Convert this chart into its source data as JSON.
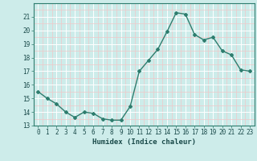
{
  "x": [
    0,
    1,
    2,
    3,
    4,
    5,
    6,
    7,
    8,
    9,
    10,
    11,
    12,
    13,
    14,
    15,
    16,
    17,
    18,
    19,
    20,
    21,
    22,
    23
  ],
  "y": [
    15.5,
    15.0,
    14.6,
    14.0,
    13.6,
    14.0,
    13.9,
    13.5,
    13.4,
    13.4,
    14.4,
    17.0,
    17.8,
    18.6,
    19.9,
    21.3,
    21.2,
    19.7,
    19.3,
    19.5,
    18.5,
    18.2,
    17.1,
    17.0
  ],
  "line_color": "#2e7d6e",
  "marker": "D",
  "marker_size": 2,
  "bg_color": "#cdecea",
  "grid_color": "#ffffff",
  "grid_minor_color": "#f0c8c8",
  "xlabel": "Humidex (Indice chaleur)",
  "ylim": [
    13,
    22
  ],
  "xlim": [
    -0.5,
    23.5
  ],
  "yticks": [
    13,
    14,
    15,
    16,
    17,
    18,
    19,
    20,
    21
  ],
  "xticks": [
    0,
    1,
    2,
    3,
    4,
    5,
    6,
    7,
    8,
    9,
    10,
    11,
    12,
    13,
    14,
    15,
    16,
    17,
    18,
    19,
    20,
    21,
    22,
    23
  ],
  "tick_label_fontsize": 5.5,
  "xlabel_fontsize": 6.5,
  "line_width": 1.0,
  "spine_color": "#2e7d6e",
  "tick_color": "#2e7d6e",
  "label_color": "#1a4a4a"
}
